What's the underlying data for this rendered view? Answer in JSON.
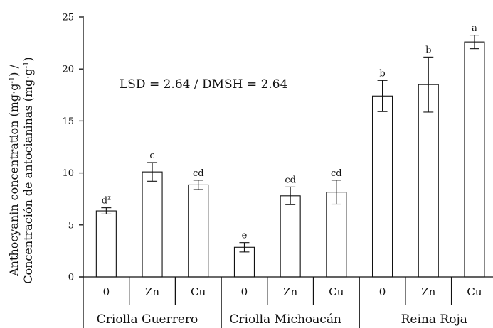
{
  "chart_data": {
    "type": "bar",
    "title": "",
    "ylabel_line1": "Anthocyanin concentration (mg·g",
    "ylabel_line1_sup": "-1",
    "ylabel_line1_end": ") /",
    "ylabel_line2": "Concentración de antocianinas (mg·g",
    "ylabel_line2_sup": "-1",
    "ylabel_line2_end": ")",
    "ylim": [
      0,
      25
    ],
    "yticks": [
      0,
      5,
      10,
      15,
      20,
      25
    ],
    "annotation": "LSD = 2.64 / DMSH = 2.64",
    "groups": [
      "Criolla Guerrero",
      "Criolla Michoacán",
      "Reina Roja"
    ],
    "categories": [
      "0",
      "Zn",
      "Cu",
      "0",
      "Zn",
      "Cu",
      "0",
      "Zn",
      "Cu"
    ],
    "values": [
      6.35,
      10.1,
      8.85,
      2.85,
      7.8,
      8.15,
      17.4,
      18.5,
      22.6
    ],
    "errors": [
      0.3,
      0.9,
      0.45,
      0.45,
      0.85,
      1.15,
      1.5,
      2.65,
      0.65
    ],
    "labels": [
      "d",
      "c",
      "cd",
      "e",
      "cd",
      "cd",
      "b",
      "b",
      "a"
    ],
    "label_sups": [
      "z",
      "",
      "",
      "",
      "",
      "",
      "",
      "",
      ""
    ]
  }
}
